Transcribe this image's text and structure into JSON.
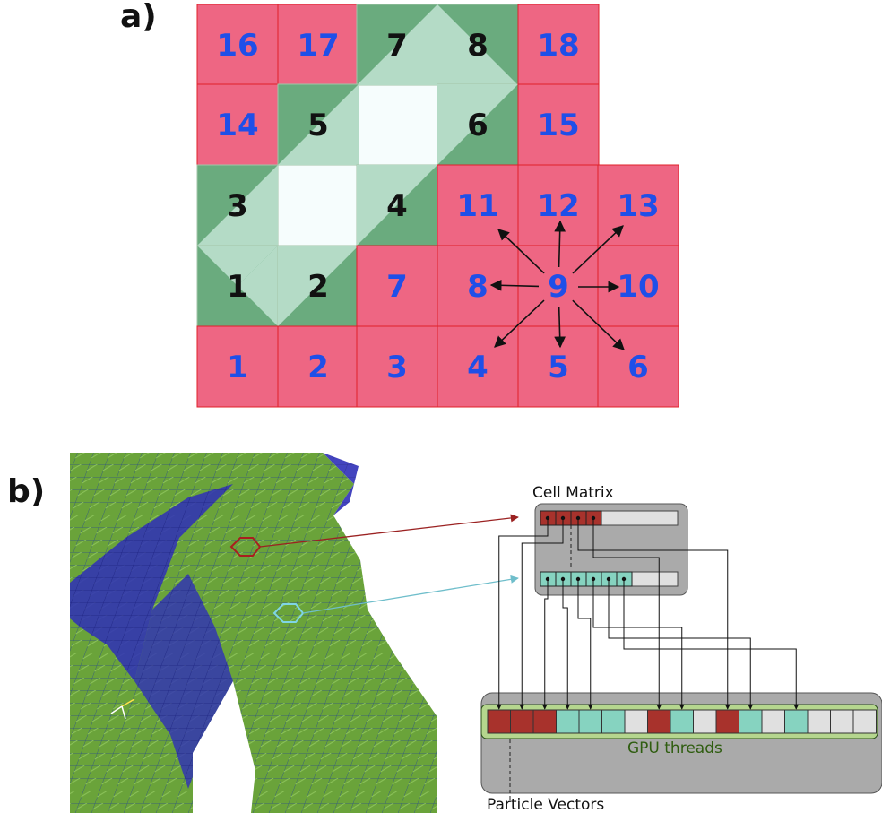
{
  "panel_a": {
    "label": "a)",
    "fluid_cells": [
      {
        "id": "16",
        "kind": "fluid"
      },
      {
        "id": "17",
        "kind": "fluid"
      },
      {
        "id": "7",
        "kind": "solid"
      },
      {
        "id": "8",
        "kind": "solid"
      },
      {
        "id": "18",
        "kind": "fluid"
      },
      {
        "id": "14",
        "kind": "fluid"
      },
      {
        "id": "5",
        "kind": "solid"
      },
      {
        "id": "6",
        "kind": "solid"
      },
      {
        "id": "15",
        "kind": "fluid"
      },
      {
        "id": "3",
        "kind": "solid"
      },
      {
        "id": "4",
        "kind": "solid"
      },
      {
        "id": "11",
        "kind": "fluid"
      },
      {
        "id": "12",
        "kind": "fluid"
      },
      {
        "id": "13",
        "kind": "fluid"
      },
      {
        "id": "1",
        "kind": "solid"
      },
      {
        "id": "2",
        "kind": "solid"
      },
      {
        "id": "7",
        "kind": "fluid"
      },
      {
        "id": "8",
        "kind": "fluid"
      },
      {
        "id": "9",
        "kind": "fluid"
      },
      {
        "id": "10",
        "kind": "fluid"
      },
      {
        "id": "1",
        "kind": "fluid"
      },
      {
        "id": "2",
        "kind": "fluid"
      },
      {
        "id": "3",
        "kind": "fluid"
      },
      {
        "id": "4",
        "kind": "fluid"
      },
      {
        "id": "5",
        "kind": "fluid"
      },
      {
        "id": "6",
        "kind": "fluid"
      }
    ],
    "colors": {
      "fluid": "#ee6683",
      "solid_dark": "#6aab7e",
      "solid_light": "#b4dbc6",
      "empty": "#f6fdfd",
      "fluid_text": "#1f4fe8",
      "solid_text": "#111111"
    }
  },
  "panel_b": {
    "label": "b)",
    "cell_matrix_label": "Cell Matrix",
    "gpu_label": "GPU threads",
    "particle_label": "Particle Vectors",
    "colors": {
      "red_cell": "#a8322c",
      "teal_cell": "#86d3c0",
      "empty_cell": "#e0e0e0",
      "box": "#aaaaaa",
      "gpu_bg": "#b5d68e",
      "mesh_green": "#6aa33a",
      "mesh_blue": "#2f2fbf"
    },
    "gpu_slots": [
      "red",
      "red",
      "red",
      "teal",
      "teal",
      "teal",
      "empty",
      "red",
      "teal",
      "empty",
      "red",
      "teal",
      "empty",
      "teal",
      "empty",
      "empty",
      "empty",
      "empty"
    ]
  }
}
